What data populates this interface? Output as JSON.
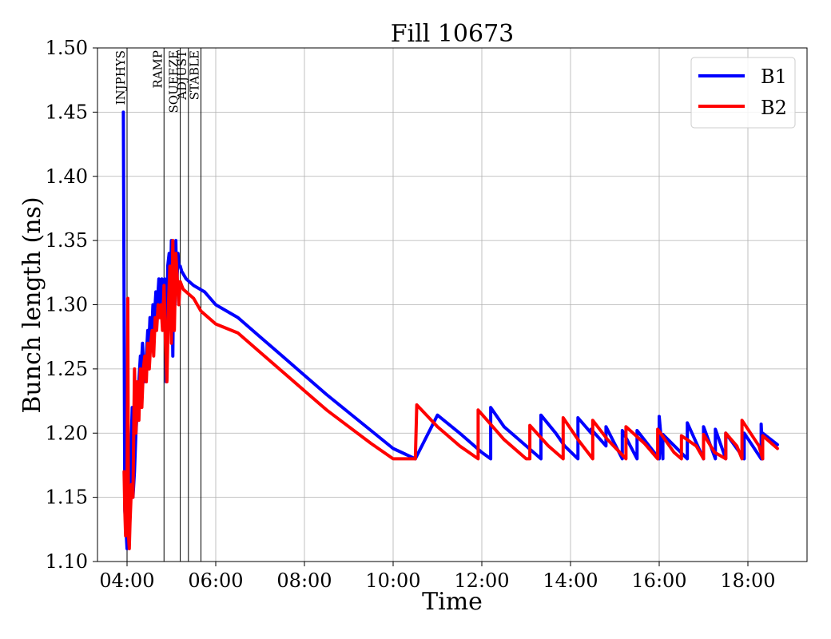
{
  "chart_data": {
    "type": "line",
    "title": "Fill 10673",
    "xlabel": "Time",
    "ylabel": "Bunch length (ns)",
    "xlim": [
      "03:20",
      "19:20"
    ],
    "ylim": [
      1.1,
      1.5
    ],
    "x_ticks": [
      "04:00",
      "06:00",
      "08:00",
      "10:00",
      "12:00",
      "14:00",
      "16:00",
      "18:00"
    ],
    "y_ticks": [
      "1.10",
      "1.15",
      "1.20",
      "1.25",
      "1.30",
      "1.35",
      "1.40",
      "1.45",
      "1.50"
    ],
    "grid": true,
    "legend_position": "top-right",
    "phases": [
      {
        "label": "INJPHYS",
        "time": "04:00"
      },
      {
        "label": "RAMP",
        "time": "04:50"
      },
      {
        "label": "SQUEEZE",
        "time": "05:12"
      },
      {
        "label": "ADJUST",
        "time": "05:23"
      },
      {
        "label": "STABLE",
        "time": "05:40"
      }
    ],
    "series": [
      {
        "name": "B1",
        "color": "#0000ff",
        "x": [
          "03:55",
          "03:56",
          "03:57",
          "03:58",
          "03:59",
          "04:00",
          "04:02",
          "04:04",
          "04:05",
          "04:07",
          "04:08",
          "04:10",
          "04:12",
          "04:14",
          "04:16",
          "04:18",
          "04:19",
          "04:21",
          "04:23",
          "04:24",
          "04:26",
          "04:28",
          "04:29",
          "04:31",
          "04:33",
          "04:35",
          "04:37",
          "04:39",
          "04:41",
          "04:43",
          "04:45",
          "04:47",
          "04:49",
          "04:51",
          "04:53",
          "04:55",
          "04:57",
          "04:58",
          "05:00",
          "05:02",
          "05:03",
          "05:05",
          "05:06",
          "05:07",
          "05:09",
          "05:10",
          "05:12",
          "05:14",
          "05:16",
          "05:20",
          "05:30",
          "05:45",
          "06:00",
          "06:30",
          "07:00",
          "07:30",
          "08:00",
          "08:30",
          "09:00",
          "09:30",
          "10:00",
          "10:30",
          "11:00",
          "11:00",
          "11:30",
          "12:00",
          "12:12",
          "12:12",
          "12:30",
          "13:00",
          "13:20",
          "13:20",
          "13:40",
          "13:40",
          "13:52",
          "14:10",
          "14:10",
          "14:28",
          "14:28",
          "14:48",
          "14:48",
          "15:10",
          "15:10",
          "15:30",
          "15:30",
          "16:00",
          "16:00",
          "16:05",
          "16:05",
          "16:38",
          "16:38",
          "17:00",
          "17:00",
          "17:16",
          "17:16",
          "17:30",
          "17:30",
          "17:55",
          "17:55",
          "18:18",
          "18:18",
          "18:20",
          "18:20",
          "18:40"
        ],
        "y": [
          1.45,
          1.3,
          1.14,
          1.13,
          1.12,
          1.11,
          1.12,
          1.14,
          1.18,
          1.22,
          1.15,
          1.17,
          1.2,
          1.22,
          1.24,
          1.26,
          1.25,
          1.27,
          1.24,
          1.25,
          1.26,
          1.28,
          1.26,
          1.29,
          1.27,
          1.3,
          1.29,
          1.31,
          1.3,
          1.32,
          1.3,
          1.32,
          1.31,
          1.32,
          1.24,
          1.33,
          1.34,
          1.29,
          1.35,
          1.26,
          1.33,
          1.3,
          1.35,
          1.31,
          1.34,
          1.33,
          1.33,
          1.326,
          1.324,
          1.32,
          1.315,
          1.31,
          1.3,
          1.29,
          1.275,
          1.26,
          1.245,
          1.23,
          1.216,
          1.202,
          1.188,
          1.18,
          1.214,
          1.214,
          1.2,
          1.185,
          1.18,
          1.22,
          1.205,
          1.19,
          1.18,
          1.214,
          1.2,
          1.2,
          1.19,
          1.18,
          1.212,
          1.2,
          1.203,
          1.19,
          1.205,
          1.18,
          1.202,
          1.18,
          1.202,
          1.18,
          1.213,
          1.18,
          1.199,
          1.18,
          1.208,
          1.18,
          1.205,
          1.18,
          1.203,
          1.18,
          1.2,
          1.18,
          1.2,
          1.18,
          1.207,
          1.18,
          1.2,
          1.191
        ]
      },
      {
        "name": "B2",
        "color": "#ff0000",
        "x": [
          "03:56",
          "03:57",
          "03:58",
          "03:59",
          "04:00",
          "04:01",
          "04:02",
          "04:03",
          "04:04",
          "04:06",
          "04:08",
          "04:10",
          "04:12",
          "04:14",
          "04:16",
          "04:18",
          "04:20",
          "04:22",
          "04:24",
          "04:26",
          "04:28",
          "04:30",
          "04:32",
          "04:34",
          "04:36",
          "04:38",
          "04:40",
          "04:42",
          "04:44",
          "04:46",
          "04:48",
          "04:50",
          "04:52",
          "04:54",
          "04:56",
          "04:58",
          "05:00",
          "05:02",
          "05:04",
          "05:06",
          "05:08",
          "05:10",
          "05:12",
          "05:14",
          "05:16",
          "05:20",
          "05:30",
          "05:40",
          "06:00",
          "06:30",
          "07:00",
          "07:30",
          "08:00",
          "08:30",
          "09:00",
          "09:30",
          "10:00",
          "10:30",
          "10:32",
          "10:32",
          "11:00",
          "11:30",
          "11:55",
          "11:55",
          "12:30",
          "13:00",
          "13:05",
          "13:05",
          "13:30",
          "13:50",
          "13:50",
          "14:10",
          "14:30",
          "14:30",
          "14:50",
          "15:15",
          "15:15",
          "15:40",
          "15:58",
          "15:58",
          "16:20",
          "16:30",
          "16:30",
          "16:50",
          "17:00",
          "17:00",
          "17:15",
          "17:30",
          "17:30",
          "17:45",
          "17:52",
          "17:52",
          "18:15",
          "18:20",
          "18:20",
          "18:40"
        ],
        "y": [
          1.17,
          1.14,
          1.12,
          1.13,
          1.15,
          1.305,
          1.12,
          1.11,
          1.13,
          1.16,
          1.15,
          1.25,
          1.2,
          1.24,
          1.21,
          1.25,
          1.22,
          1.25,
          1.26,
          1.24,
          1.27,
          1.25,
          1.27,
          1.28,
          1.26,
          1.29,
          1.28,
          1.3,
          1.29,
          1.3,
          1.28,
          1.315,
          1.27,
          1.24,
          1.3,
          1.33,
          1.27,
          1.35,
          1.28,
          1.34,
          1.32,
          1.3,
          1.318,
          1.315,
          1.312,
          1.31,
          1.305,
          1.295,
          1.285,
          1.278,
          1.263,
          1.248,
          1.233,
          1.218,
          1.205,
          1.192,
          1.18,
          1.18,
          1.222,
          1.222,
          1.205,
          1.19,
          1.18,
          1.218,
          1.195,
          1.18,
          1.18,
          1.206,
          1.19,
          1.18,
          1.212,
          1.195,
          1.18,
          1.21,
          1.195,
          1.18,
          1.205,
          1.192,
          1.18,
          1.203,
          1.185,
          1.18,
          1.198,
          1.19,
          1.18,
          1.199,
          1.185,
          1.18,
          1.2,
          1.19,
          1.18,
          1.21,
          1.19,
          1.18,
          1.198,
          1.188
        ]
      }
    ]
  }
}
